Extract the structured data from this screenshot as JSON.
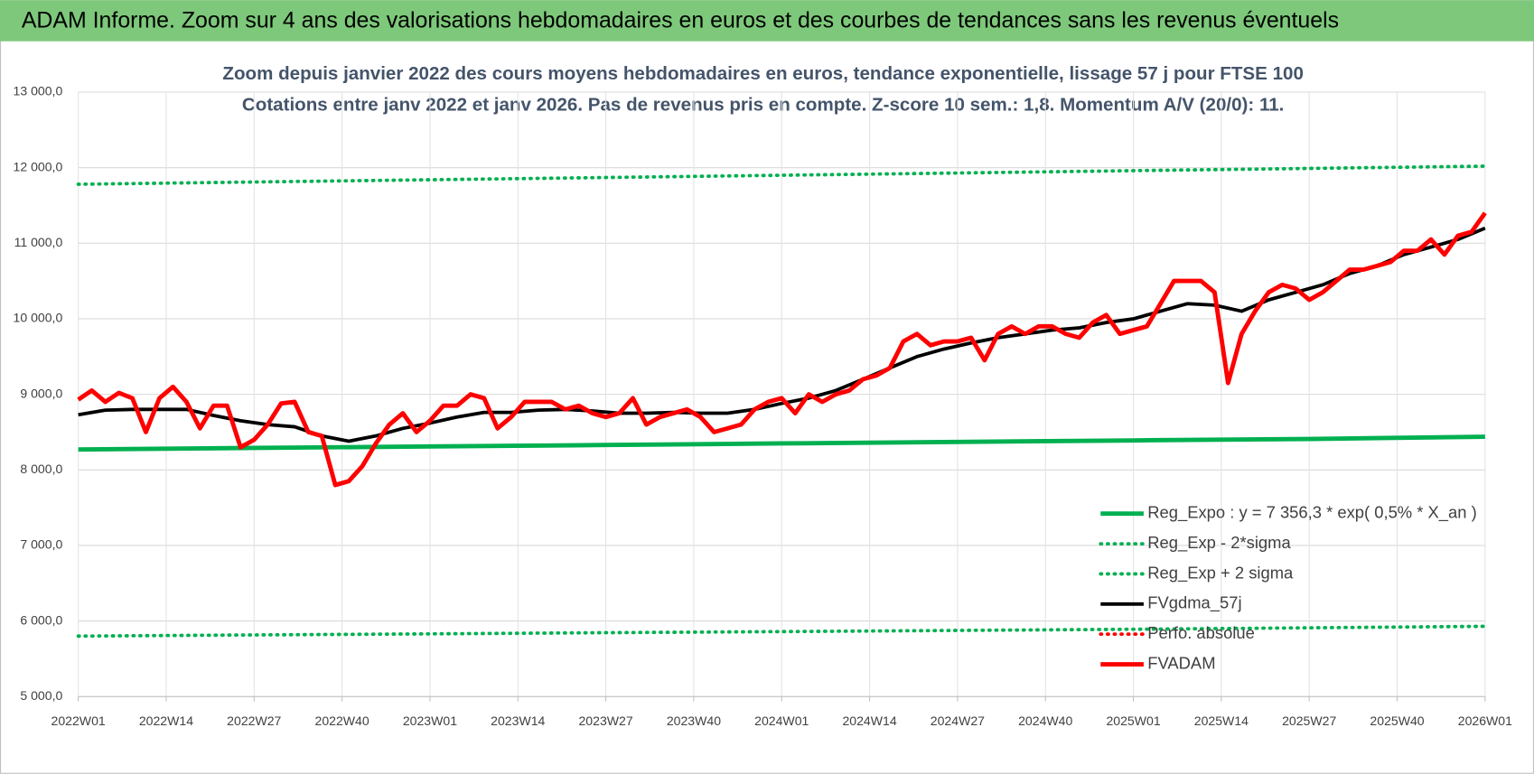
{
  "header": {
    "title": "ADAM Informe. Zoom sur 4 ans des valorisations hebdomadaires en euros et des courbes de tendances sans les revenus éventuels"
  },
  "chart_data": {
    "type": "line",
    "title": "Zoom depuis janvier 2022 des cours moyens hebdomadaires en euros, tendance exponentielle, lissage 57 j pour FTSE 100",
    "subtitle": "Cotations entre janv 2022 et janv 2026. Pas de revenus pris en compte. Z-score 10 sem.: 1,8. Momentum A/V (20/0): 11.",
    "xlim": [
      0,
      208
    ],
    "xticks": [
      {
        "value": 0,
        "label": "2022W01"
      },
      {
        "value": 13,
        "label": "2022W14"
      },
      {
        "value": 26,
        "label": "2022W27"
      },
      {
        "value": 39,
        "label": "2022W40"
      },
      {
        "value": 52,
        "label": "2023W01"
      },
      {
        "value": 65,
        "label": "2023W14"
      },
      {
        "value": 78,
        "label": "2023W27"
      },
      {
        "value": 91,
        "label": "2023W40"
      },
      {
        "value": 104,
        "label": "2024W01"
      },
      {
        "value": 117,
        "label": "2024W14"
      },
      {
        "value": 130,
        "label": "2024W27"
      },
      {
        "value": 143,
        "label": "2024W40"
      },
      {
        "value": 156,
        "label": "2025W01"
      },
      {
        "value": 169,
        "label": "2025W14"
      },
      {
        "value": 182,
        "label": "2025W27"
      },
      {
        "value": 195,
        "label": "2025W40"
      },
      {
        "value": 208,
        "label": "2026W01"
      }
    ],
    "ylim": [
      5000,
      13000
    ],
    "yticks": [
      {
        "value": 5000,
        "label": "5 000,0"
      },
      {
        "value": 6000,
        "label": "6 000,0"
      },
      {
        "value": 7000,
        "label": "7 000,0"
      },
      {
        "value": 8000,
        "label": "8 000,0"
      },
      {
        "value": 9000,
        "label": "9 000,0"
      },
      {
        "value": 10000,
        "label": "10 000,0"
      },
      {
        "value": 11000,
        "label": "11 000,0"
      },
      {
        "value": 12000,
        "label": "12 000,0"
      },
      {
        "value": 13000,
        "label": "13 000,0"
      }
    ],
    "grid": true,
    "legend": "right",
    "series": [
      {
        "name": "Reg_Expo : y = 7 356,3 * exp( 0,5% *  X_an )",
        "color": "#00b050",
        "style": "solid",
        "x": [
          0,
          26,
          52,
          78,
          104,
          130,
          156,
          182,
          208
        ],
        "values": [
          8270,
          8290,
          8310,
          8330,
          8350,
          8370,
          8390,
          8410,
          8440
        ]
      },
      {
        "name": "Reg_Exp - 2*sigma",
        "color": "#00b050",
        "style": "dotted",
        "x": [
          0,
          26,
          52,
          78,
          104,
          130,
          156,
          182,
          208
        ],
        "values": [
          5800,
          5815,
          5830,
          5845,
          5860,
          5875,
          5890,
          5910,
          5930
        ]
      },
      {
        "name": "Reg_Exp + 2 sigma",
        "color": "#00b050",
        "style": "dotted",
        "x": [
          0,
          26,
          52,
          78,
          104,
          130,
          156,
          182,
          208
        ],
        "values": [
          11780,
          11810,
          11840,
          11870,
          11900,
          11930,
          11960,
          11990,
          12020
        ]
      },
      {
        "name": "FVgdma_57j",
        "color": "#000000",
        "style": "solid",
        "x": [
          0,
          4,
          8,
          12,
          16,
          20,
          24,
          28,
          32,
          36,
          40,
          44,
          48,
          52,
          56,
          60,
          64,
          68,
          72,
          76,
          80,
          84,
          88,
          92,
          96,
          100,
          104,
          108,
          112,
          116,
          120,
          124,
          128,
          132,
          136,
          140,
          144,
          148,
          152,
          156,
          160,
          164,
          168,
          172,
          176,
          180,
          184,
          188,
          192,
          196,
          200,
          204,
          208
        ],
        "values": [
          8730,
          8790,
          8800,
          8800,
          8800,
          8720,
          8650,
          8600,
          8570,
          8450,
          8380,
          8450,
          8550,
          8620,
          8700,
          8760,
          8760,
          8790,
          8800,
          8780,
          8750,
          8750,
          8760,
          8750,
          8750,
          8800,
          8880,
          8950,
          9050,
          9200,
          9350,
          9500,
          9600,
          9680,
          9750,
          9800,
          9850,
          9880,
          9950,
          10000,
          10100,
          10200,
          10180,
          10100,
          10250,
          10350,
          10450,
          10600,
          10700,
          10850,
          10950,
          11050,
          11200
        ]
      },
      {
        "name": "Perfo. absolue",
        "color": "#ff0000",
        "style": "dotted",
        "x": [],
        "values": []
      },
      {
        "name": "FVADAM",
        "color": "#ff0000",
        "style": "solid",
        "x": [
          0,
          2,
          4,
          6,
          8,
          10,
          12,
          14,
          16,
          18,
          20,
          22,
          24,
          26,
          28,
          30,
          32,
          34,
          36,
          38,
          40,
          42,
          44,
          46,
          48,
          50,
          52,
          54,
          56,
          58,
          60,
          62,
          64,
          66,
          68,
          70,
          72,
          74,
          76,
          78,
          80,
          82,
          84,
          86,
          88,
          90,
          92,
          94,
          96,
          98,
          100,
          102,
          104,
          106,
          108,
          110,
          112,
          114,
          116,
          118,
          120,
          122,
          124,
          126,
          128,
          130,
          132,
          134,
          136,
          138,
          140,
          142,
          144,
          146,
          148,
          150,
          152,
          154,
          156,
          158,
          160,
          162,
          164,
          166,
          168,
          170,
          172,
          174,
          176,
          178,
          180,
          182,
          184,
          186,
          188,
          190,
          192,
          194,
          196,
          198,
          200,
          202,
          204,
          206,
          208
        ],
        "values": [
          8930,
          9050,
          8900,
          9020,
          8950,
          8500,
          8950,
          9100,
          8900,
          8550,
          8850,
          8850,
          8300,
          8400,
          8600,
          8880,
          8900,
          8500,
          8450,
          7800,
          7850,
          8050,
          8350,
          8600,
          8750,
          8500,
          8650,
          8850,
          8850,
          9000,
          8950,
          8550,
          8700,
          8900,
          8900,
          8900,
          8800,
          8850,
          8750,
          8700,
          8750,
          8950,
          8600,
          8700,
          8750,
          8800,
          8700,
          8500,
          8550,
          8600,
          8800,
          8900,
          8950,
          8750,
          9000,
          8900,
          9000,
          9050,
          9200,
          9250,
          9350,
          9700,
          9800,
          9650,
          9700,
          9700,
          9750,
          9450,
          9800,
          9900,
          9800,
          9900,
          9900,
          9800,
          9750,
          9950,
          10050,
          9800,
          9850,
          9900,
          10200,
          10500,
          10500,
          10500,
          10350,
          9150,
          9800,
          10100,
          10350,
          10450,
          10400,
          10250,
          10350,
          10500,
          10650,
          10650,
          10700,
          10750,
          10900,
          10900,
          11050,
          10850,
          11100,
          11150,
          11400
        ]
      }
    ]
  }
}
